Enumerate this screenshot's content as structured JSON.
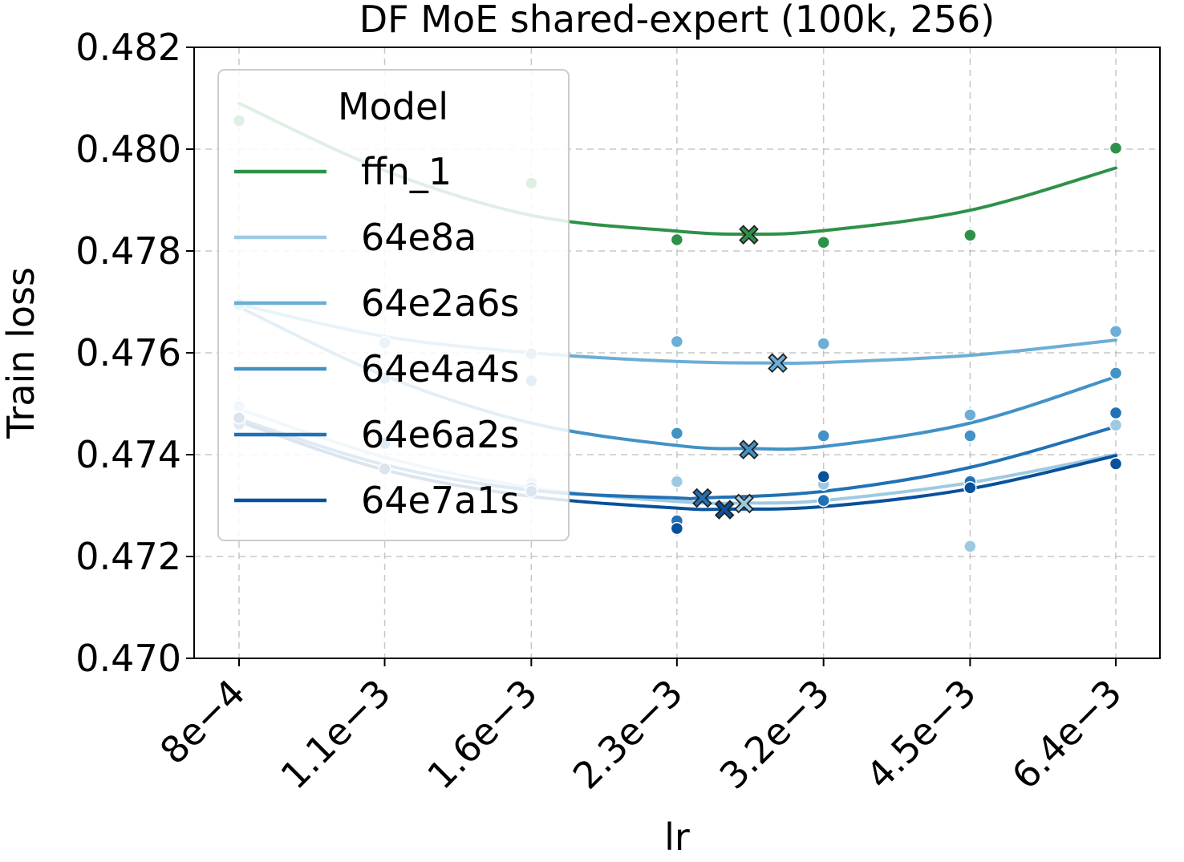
{
  "chart_data": {
    "type": "scatter",
    "title": "DF MoE shared-expert (100k, 256)",
    "xlabel": "lr",
    "ylabel": "Train loss",
    "xscale": "log",
    "categories": [
      "8e−4",
      "1.1e−3",
      "1.6e−3",
      "2.3e−3",
      "3.2e−3",
      "4.5e−3",
      "6.4e−3"
    ],
    "x": [
      0.0008,
      0.00113,
      0.0016,
      0.00226,
      0.0032,
      0.00453,
      0.0064
    ],
    "ylim": [
      0.47,
      0.482
    ],
    "yticks": [
      "0.470",
      "0.472",
      "0.474",
      "0.476",
      "0.478",
      "0.480",
      "0.482"
    ],
    "ytick_values": [
      0.47,
      0.472,
      0.474,
      0.476,
      0.478,
      0.48,
      0.482
    ],
    "grid": true,
    "legend": {
      "title": "Model",
      "placement": "top-left"
    },
    "series": [
      {
        "name": "ffn_1",
        "color": "#2e9149",
        "points": [
          [
            0.0008,
            0.48056
          ],
          [
            0.0016,
            0.47933
          ],
          [
            0.00226,
            0.47822
          ],
          [
            0.0032,
            0.47817
          ],
          [
            0.00453,
            0.47831
          ],
          [
            0.0064,
            0.48002
          ]
        ],
        "fit": [
          [
            0.0008,
            0.4809
          ],
          [
            0.00113,
            0.47958
          ],
          [
            0.0016,
            0.4787
          ],
          [
            0.00226,
            0.47839
          ],
          [
            0.00268,
            0.47833
          ],
          [
            0.0032,
            0.4784
          ],
          [
            0.00453,
            0.4788
          ],
          [
            0.0064,
            0.47963
          ]
        ],
        "optimum": [
          0.00268,
          0.47832
        ]
      },
      {
        "name": "64e8a",
        "color": "#9ecae1",
        "points": [
          [
            0.0008,
            0.47495
          ],
          [
            0.00113,
            0.4737
          ],
          [
            0.0016,
            0.47345
          ],
          [
            0.00226,
            0.47347
          ],
          [
            0.0032,
            0.47342
          ],
          [
            0.00453,
            0.4722
          ],
          [
            0.0064,
            0.47458
          ]
        ],
        "fit": [
          [
            0.0008,
            0.4749
          ],
          [
            0.00113,
            0.47395
          ],
          [
            0.0016,
            0.47335
          ],
          [
            0.00226,
            0.47308
          ],
          [
            0.00265,
            0.47305
          ],
          [
            0.0032,
            0.4731
          ],
          [
            0.00453,
            0.47345
          ],
          [
            0.0064,
            0.474
          ]
        ],
        "optimum": [
          0.00265,
          0.47304
        ]
      },
      {
        "name": "64e2a6s",
        "color": "#6baed6",
        "points": [
          [
            0.0008,
            0.47695
          ],
          [
            0.00113,
            0.4762
          ],
          [
            0.0016,
            0.47598
          ],
          [
            0.00226,
            0.47622
          ],
          [
            0.0032,
            0.47618
          ],
          [
            0.00453,
            0.47478
          ],
          [
            0.0064,
            0.47642
          ]
        ],
        "fit": [
          [
            0.0008,
            0.47695
          ],
          [
            0.00113,
            0.47632
          ],
          [
            0.0016,
            0.476
          ],
          [
            0.00226,
            0.47583
          ],
          [
            0.00287,
            0.4758
          ],
          [
            0.0032,
            0.47581
          ],
          [
            0.00453,
            0.47595
          ],
          [
            0.0064,
            0.47625
          ]
        ],
        "optimum": [
          0.00287,
          0.4758
        ]
      },
      {
        "name": "64e4a4s",
        "color": "#4292c6",
        "points": [
          [
            0.0008,
            0.4747
          ],
          [
            0.00113,
            0.4755
          ],
          [
            0.0016,
            0.47545
          ],
          [
            0.00226,
            0.47442
          ],
          [
            0.0032,
            0.47437
          ],
          [
            0.00453,
            0.47437
          ],
          [
            0.0064,
            0.4756
          ]
        ],
        "fit": [
          [
            0.0008,
            0.4769
          ],
          [
            0.00113,
            0.47555
          ],
          [
            0.0016,
            0.47462
          ],
          [
            0.00226,
            0.47418
          ],
          [
            0.00268,
            0.47412
          ],
          [
            0.0032,
            0.47416
          ],
          [
            0.00453,
            0.47462
          ],
          [
            0.0064,
            0.47553
          ]
        ],
        "optimum": [
          0.00268,
          0.4741
        ]
      },
      {
        "name": "64e6a2s",
        "color": "#2171b5",
        "points": [
          [
            0.0008,
            0.4746
          ],
          [
            0.00113,
            0.47422
          ],
          [
            0.0016,
            0.47335
          ],
          [
            0.00226,
            0.4727
          ],
          [
            0.0032,
            0.4731
          ],
          [
            0.00453,
            0.47347
          ],
          [
            0.0064,
            0.47482
          ]
        ],
        "fit": [
          [
            0.0008,
            0.4747
          ],
          [
            0.00113,
            0.4738
          ],
          [
            0.0016,
            0.4733
          ],
          [
            0.00226,
            0.47315
          ],
          [
            0.0024,
            0.47315
          ],
          [
            0.0032,
            0.47328
          ],
          [
            0.00453,
            0.47375
          ],
          [
            0.0064,
            0.47455
          ]
        ],
        "optimum": [
          0.0024,
          0.47315
        ]
      },
      {
        "name": "64e7a1s",
        "color": "#08519c",
        "points": [
          [
            0.0008,
            0.47472
          ],
          [
            0.00113,
            0.47372
          ],
          [
            0.0016,
            0.47328
          ],
          [
            0.00226,
            0.47255
          ],
          [
            0.0032,
            0.47357
          ],
          [
            0.00453,
            0.47335
          ],
          [
            0.0064,
            0.47382
          ]
        ],
        "fit": [
          [
            0.0008,
            0.47465
          ],
          [
            0.00113,
            0.4737
          ],
          [
            0.0016,
            0.47318
          ],
          [
            0.00226,
            0.47295
          ],
          [
            0.00253,
            0.47293
          ],
          [
            0.0032,
            0.47298
          ],
          [
            0.00453,
            0.47333
          ],
          [
            0.0064,
            0.47398
          ]
        ],
        "optimum": [
          0.00253,
          0.47292
        ]
      }
    ]
  }
}
